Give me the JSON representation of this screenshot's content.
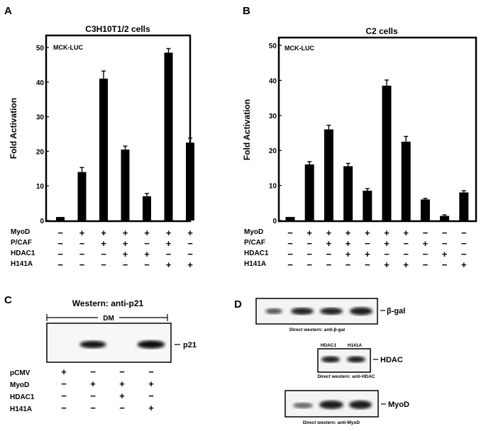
{
  "panels": {
    "A": "A",
    "B": "B",
    "C": "C",
    "D": "D"
  },
  "chart_data": [
    {
      "type": "bar",
      "title": "C3H10T1/2 cells",
      "annotation": "MCK-LUC",
      "ylabel": "Fold Activation",
      "ylim": [
        0,
        50
      ],
      "yticks": [
        "0",
        "10",
        "20",
        "30",
        "40",
        "50"
      ],
      "values": [
        1,
        14,
        41,
        20.5,
        7,
        48.5,
        22.5
      ],
      "errors": [
        0,
        1.3,
        2.2,
        1.0,
        0.8,
        1.2,
        1.3
      ],
      "conditions": {
        "labels": [
          "MyoD",
          "P/CAF",
          "HDAC1",
          "H141A"
        ],
        "rows": [
          [
            "−",
            "+",
            "+",
            "+",
            "+",
            "+",
            "+"
          ],
          [
            "−",
            "−",
            "+",
            "+",
            "−",
            "+",
            "−"
          ],
          [
            "−",
            "−",
            "−",
            "+",
            "+",
            "−",
            "−"
          ],
          [
            "−",
            "−",
            "−",
            "−",
            "−",
            "+",
            "+"
          ]
        ]
      }
    },
    {
      "type": "bar",
      "title": "C2 cells",
      "annotation": "MCK-LUC",
      "ylabel": "Fold Activation",
      "ylim": [
        0,
        50
      ],
      "yticks": [
        "0",
        "10",
        "20",
        "30",
        "40",
        "50"
      ],
      "values": [
        1,
        16,
        26,
        15.5,
        8.5,
        38.5,
        22.5,
        6,
        1.3,
        8
      ],
      "errors": [
        0,
        0.8,
        1.2,
        0.8,
        0.6,
        1.6,
        1.5,
        0.3,
        0.3,
        0.5
      ],
      "conditions": {
        "labels": [
          "MyoD",
          "P/CAF",
          "HDAC1",
          "H141A"
        ],
        "rows": [
          [
            "−",
            "+",
            "+",
            "+",
            "+",
            "+",
            "+",
            "−",
            "−",
            "−"
          ],
          [
            "−",
            "−",
            "+",
            "+",
            "−",
            "+",
            "−",
            "+",
            "−",
            "−"
          ],
          [
            "−",
            "−",
            "−",
            "+",
            "+",
            "−",
            "−",
            "−",
            "+",
            "−"
          ],
          [
            "−",
            "−",
            "−",
            "−",
            "−",
            "+",
            "+",
            "−",
            "−",
            "+"
          ]
        ]
      }
    }
  ],
  "western_c": {
    "title": "Western: anti-p21",
    "bracket": "DM",
    "band_label": "p21",
    "band_intensity": [
      0,
      0.75,
      0,
      0.9
    ],
    "labels": [
      "pCMV",
      "MyoD",
      "HDAC1",
      "H141A"
    ],
    "rows": [
      [
        "+",
        "−",
        "−",
        "−"
      ],
      [
        "−",
        "+",
        "+",
        "+"
      ],
      [
        "−",
        "−",
        "+",
        "−"
      ],
      [
        "−",
        "−",
        "−",
        "+"
      ]
    ]
  },
  "western_d": {
    "beta_gal": {
      "label": "β-gal",
      "caption": "Direct western: anti-β-gal"
    },
    "hdac": {
      "label": "HDAC",
      "caption": "Direct western: anti-HDAC",
      "lanes": [
        "HDAC1",
        "H141A"
      ]
    },
    "myod": {
      "label": "MyoD",
      "caption": "Direct western: anti-MyoD"
    }
  }
}
